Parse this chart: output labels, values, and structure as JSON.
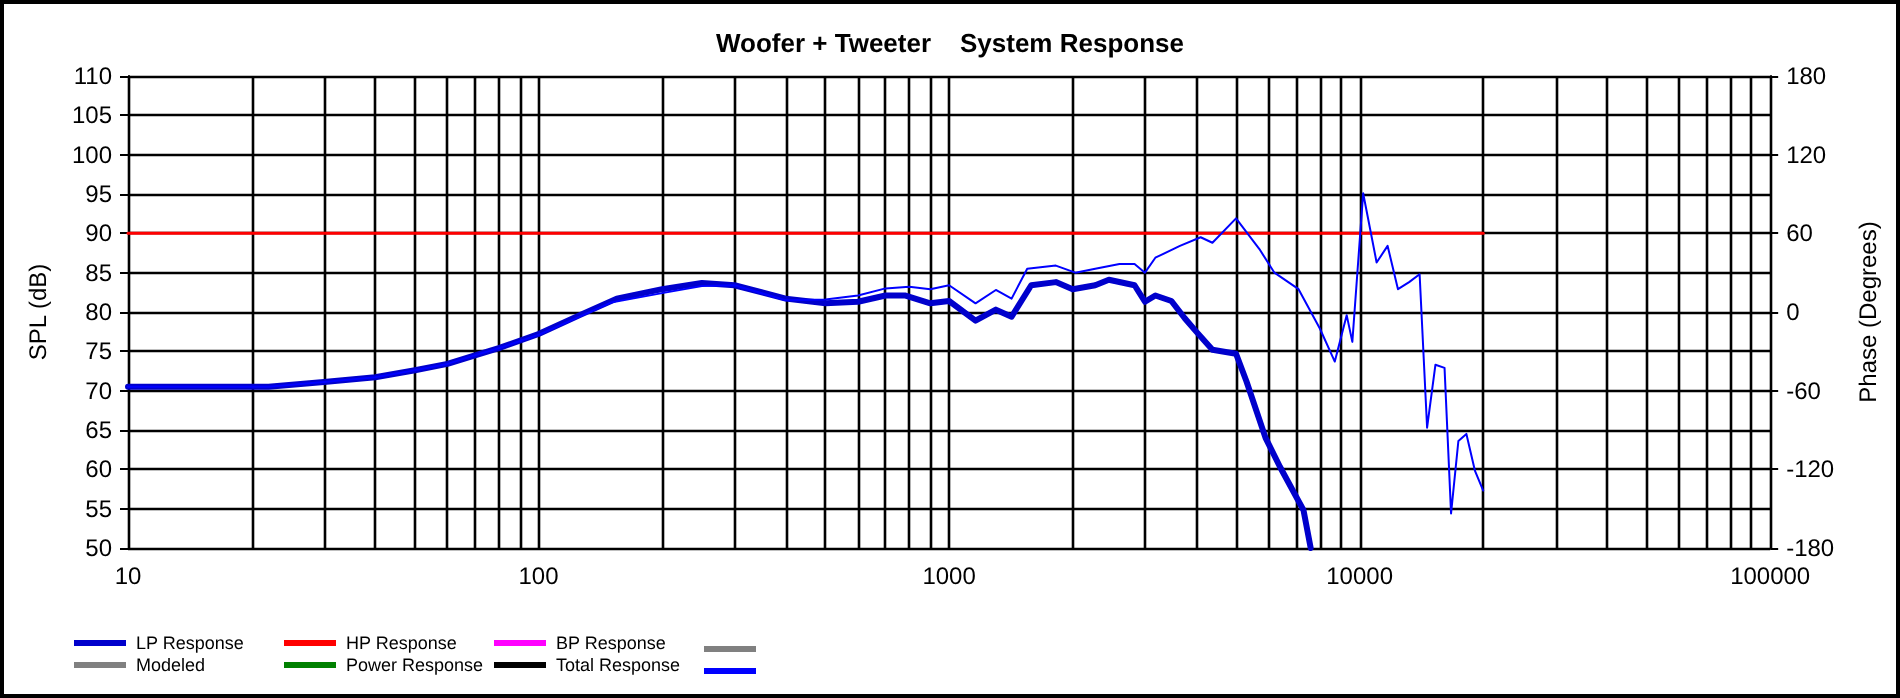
{
  "chart_data": {
    "type": "line",
    "title": "Woofer + Tweeter    System Response",
    "ylabel": "SPL (dB)",
    "y2label": "Phase (Degrees)",
    "log": "x",
    "grid": true,
    "legend": "bottom",
    "marker": "none",
    "line_style": "solid",
    "xlim": [
      10,
      100000
    ],
    "xticks": [
      10,
      {
        "value": 20,
        "label": null
      },
      {
        "value": 30,
        "label": null
      },
      {
        "value": 40,
        "label": null
      },
      {
        "value": 50,
        "label": null
      },
      {
        "value": 60,
        "label": null
      },
      {
        "value": 70,
        "label": null
      },
      {
        "value": 80,
        "label": null
      },
      {
        "value": 90,
        "label": null
      },
      100,
      {
        "value": 200,
        "label": null
      },
      {
        "value": 300,
        "label": null
      },
      {
        "value": 400,
        "label": null
      },
      {
        "value": 500,
        "label": null
      },
      {
        "value": 600,
        "label": null
      },
      {
        "value": 700,
        "label": null
      },
      {
        "value": 800,
        "label": null
      },
      {
        "value": 900,
        "label": null
      },
      1000,
      {
        "value": 2000,
        "label": null
      },
      {
        "value": 3000,
        "label": null
      },
      {
        "value": 4000,
        "label": null
      },
      {
        "value": 5000,
        "label": null
      },
      {
        "value": 6000,
        "label": null
      },
      {
        "value": 7000,
        "label": null
      },
      {
        "value": 8000,
        "label": null
      },
      {
        "value": 9000,
        "label": null
      },
      10000,
      {
        "value": 20000,
        "label": null
      },
      {
        "value": 30000,
        "label": null
      },
      {
        "value": 40000,
        "label": null
      },
      {
        "value": 50000,
        "label": null
      },
      {
        "value": 60000,
        "label": null
      },
      {
        "value": 70000,
        "label": null
      },
      {
        "value": 80000,
        "label": null
      },
      {
        "value": 90000,
        "label": null
      },
      100000
    ],
    "ylim": [
      50,
      110
    ],
    "yticks": [
      50,
      55,
      60,
      65,
      70,
      75,
      80,
      85,
      90,
      95,
      100,
      105,
      110
    ],
    "y2lim": [
      -180,
      180
    ],
    "y2ticks": [
      -180,
      -120,
      -60,
      0,
      60,
      120,
      180
    ],
    "series": [
      {
        "name": "LP Response",
        "color": "#0000cc",
        "x": [
          10,
          22,
          30,
          40,
          50,
          60,
          70,
          80,
          100,
          126,
          155,
          200,
          250,
          300,
          400,
          500,
          600,
          700,
          780,
          900,
          1000,
          1160,
          1300,
          1420,
          1585,
          1820,
          2000,
          2270,
          2450,
          2830,
          3000,
          3180,
          3480,
          3750,
          4000,
          4380,
          5000,
          5300,
          5900,
          6400,
          7300,
          7600
        ],
        "values": [
          70.5,
          70.5,
          71.1,
          71.7,
          72.6,
          73.4,
          74.5,
          75.4,
          77.2,
          79.6,
          81.7,
          82.9,
          83.7,
          83.4,
          81.7,
          81.1,
          81.3,
          82.1,
          82.1,
          81.1,
          81.4,
          78.9,
          80.3,
          79.4,
          83.4,
          83.8,
          82.9,
          83.4,
          84.1,
          83.4,
          81.3,
          82.1,
          81.4,
          79.2,
          77.5,
          75.2,
          74.7,
          71.2,
          64,
          60.3,
          54.8,
          50
        ]
      },
      {
        "name": "HP Response",
        "color": "#ff0000",
        "x": [
          10,
          20000
        ],
        "values": [
          90,
          90
        ]
      },
      {
        "name": "BP Response",
        "color": "#ff00ff"
      },
      {
        "name": null,
        "color": "#808080"
      },
      {
        "name": "Modeled",
        "color": "#808080"
      },
      {
        "name": "Power Response",
        "color": "#008000"
      },
      {
        "name": "Total Response",
        "color": "#000000"
      },
      {
        "name": null,
        "color": "#0000ff",
        "x": [
          10,
          22,
          30,
          40,
          50,
          60,
          70,
          80,
          100,
          150,
          200,
          250,
          300,
          400,
          500,
          600,
          700,
          800,
          900,
          1000,
          1160,
          1300,
          1420,
          1550,
          1820,
          2030,
          2270,
          2600,
          2830,
          3000,
          3180,
          3650,
          4100,
          4380,
          5000,
          5700,
          6200,
          7100,
          8000,
          8700,
          9300,
          9600,
          10200,
          11000,
          11700,
          12400,
          13200,
          14000,
          14600,
          15300,
          16100,
          16700,
          17400,
          18200,
          19100,
          20000
        ],
        "values": [
          70.5,
          70.5,
          71.1,
          71.7,
          72.6,
          73.4,
          74.5,
          75.4,
          77.1,
          81.2,
          82.4,
          83.3,
          83.4,
          81.5,
          81.6,
          82.1,
          83.0,
          83.2,
          82.9,
          83.4,
          81.1,
          82.8,
          81.7,
          85.5,
          85.9,
          85.0,
          85.5,
          86.1,
          86.1,
          85.0,
          86.9,
          88.4,
          89.5,
          88.8,
          91.9,
          88.0,
          85.0,
          82.9,
          77.9,
          73.7,
          79.6,
          76.2,
          95.1,
          86.3,
          88.4,
          82.9,
          83.8,
          84.8,
          65.3,
          73.3,
          72.9,
          54.4,
          63.6,
          64.5,
          59.8,
          57.3
        ]
      }
    ]
  }
}
